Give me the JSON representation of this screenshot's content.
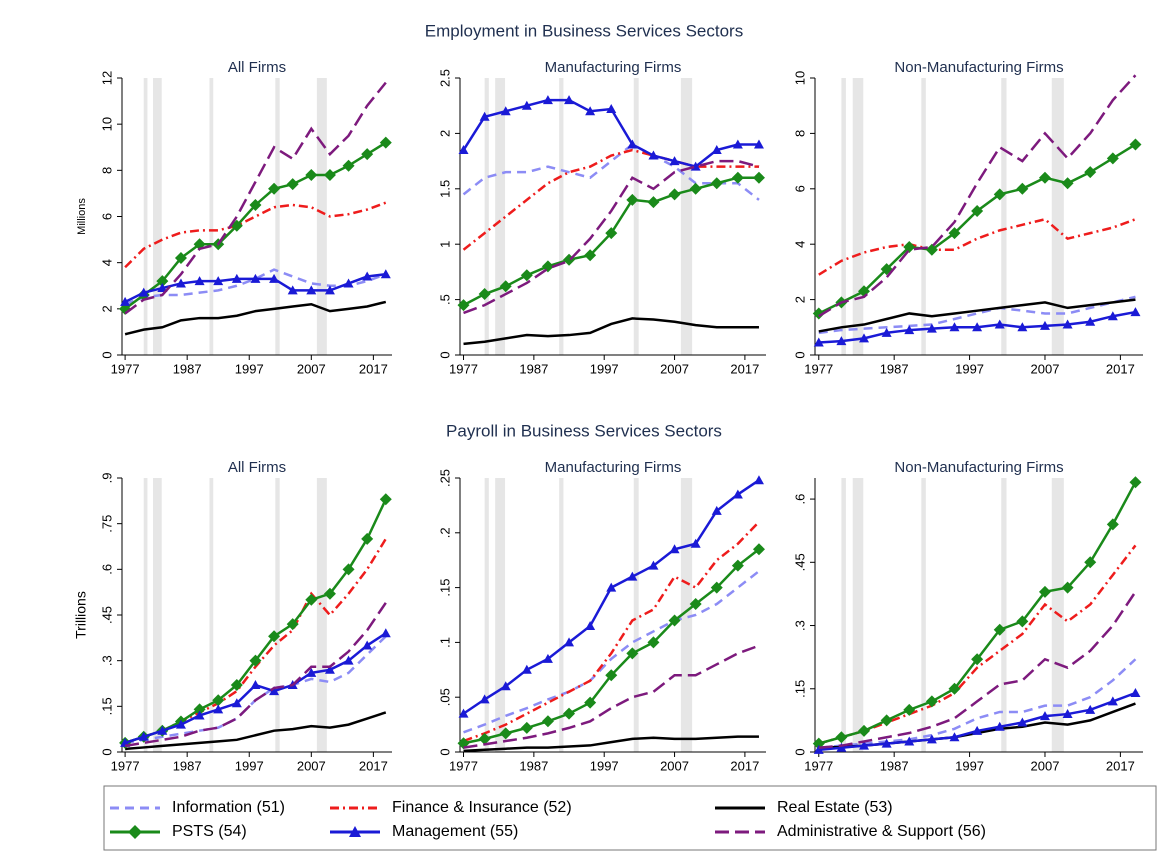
{
  "chart_data": [
    {
      "type": "line",
      "suptitle": "Employment in Business Services Sectors",
      "title": "All Firms",
      "ylabel": "Millions",
      "x": [
        1977,
        1980,
        1983,
        1986,
        1989,
        1992,
        1995,
        1998,
        2001,
        2004,
        2007,
        2010,
        2013,
        2016,
        2019
      ],
      "xlim": [
        1976.5,
        2020
      ],
      "xticks": [
        1977,
        1987,
        1997,
        2007,
        2017
      ],
      "ylim": [
        0,
        12
      ],
      "yticks": [
        0,
        2,
        4,
        6,
        8,
        10,
        12
      ],
      "bands": [
        [
          1980.0,
          1980.6
        ],
        [
          1981.5,
          1982.9
        ],
        [
          1990.6,
          1991.2
        ],
        [
          2001.2,
          2001.9
        ],
        [
          2007.9,
          2009.5
        ]
      ],
      "series": [
        {
          "name": "Information (51)",
          "color": "#8c8cf5",
          "line_style": "dash",
          "values": [
            2.2,
            2.5,
            2.6,
            2.6,
            2.7,
            2.8,
            3.0,
            3.3,
            3.7,
            3.4,
            3.1,
            3.0,
            3.0,
            3.2,
            3.5
          ]
        },
        {
          "name": "Finance & Insurance (52)",
          "color": "#ee1c1c",
          "line_style": "dashdot",
          "values": [
            3.8,
            4.6,
            5.0,
            5.3,
            5.4,
            5.4,
            5.6,
            6.0,
            6.4,
            6.5,
            6.4,
            6.0,
            6.1,
            6.3,
            6.6
          ]
        },
        {
          "name": "Real Estate (53)",
          "color": "#000000",
          "line_style": "solid",
          "values": [
            0.9,
            1.1,
            1.2,
            1.5,
            1.6,
            1.6,
            1.7,
            1.9,
            2.0,
            2.1,
            2.2,
            1.9,
            2.0,
            2.1,
            2.3
          ]
        },
        {
          "name": "PSTS (54)",
          "color": "#1a8a1a",
          "line_style": "solid",
          "marker": "diamond",
          "values": [
            2.0,
            2.6,
            3.2,
            4.2,
            4.8,
            4.8,
            5.6,
            6.5,
            7.2,
            7.4,
            7.8,
            7.8,
            8.2,
            8.7,
            9.2
          ]
        },
        {
          "name": "Management (55)",
          "color": "#1a1ad6",
          "line_style": "solid",
          "marker": "triangle",
          "values": [
            2.3,
            2.7,
            2.9,
            3.1,
            3.2,
            3.2,
            3.3,
            3.3,
            3.3,
            2.8,
            2.8,
            2.8,
            3.1,
            3.4,
            3.5
          ]
        },
        {
          "name": "Administrative & Support (56)",
          "color": "#7d1a7d",
          "line_style": "longdash",
          "values": [
            1.8,
            2.4,
            2.6,
            3.5,
            4.6,
            4.8,
            6.0,
            7.5,
            9.0,
            8.5,
            9.8,
            8.7,
            9.5,
            10.8,
            11.8
          ]
        }
      ]
    },
    {
      "type": "line",
      "title": "Manufacturing Firms",
      "x": [
        1977,
        1980,
        1983,
        1986,
        1989,
        1992,
        1995,
        1998,
        2001,
        2004,
        2007,
        2010,
        2013,
        2016,
        2019
      ],
      "xlim": [
        1976.5,
        2020
      ],
      "xticks": [
        1977,
        1987,
        1997,
        2007,
        2017
      ],
      "ylim": [
        0,
        2.5
      ],
      "yticks": [
        0,
        {
          "value": 0.5,
          "label": ".5"
        },
        1,
        1.5,
        2,
        2.5
      ],
      "bands": [
        [
          1980.0,
          1980.6
        ],
        [
          1981.5,
          1982.9
        ],
        [
          1990.6,
          1991.2
        ],
        [
          2001.2,
          2001.9
        ],
        [
          2007.9,
          2009.5
        ]
      ],
      "series": [
        {
          "values": [
            1.45,
            1.6,
            1.65,
            1.65,
            1.7,
            1.65,
            1.6,
            1.75,
            1.9,
            1.8,
            1.7,
            1.55,
            1.55,
            1.55,
            1.4
          ]
        },
        {
          "values": [
            0.95,
            1.1,
            1.25,
            1.4,
            1.55,
            1.65,
            1.7,
            1.8,
            1.85,
            1.8,
            1.75,
            1.7,
            1.7,
            1.7,
            1.7
          ]
        },
        {
          "values": [
            0.1,
            0.12,
            0.15,
            0.18,
            0.17,
            0.18,
            0.2,
            0.28,
            0.33,
            0.32,
            0.3,
            0.27,
            0.25,
            0.25,
            0.25
          ]
        },
        {
          "values": [
            0.45,
            0.55,
            0.62,
            0.72,
            0.8,
            0.86,
            0.9,
            1.1,
            1.4,
            1.38,
            1.45,
            1.5,
            1.55,
            1.6,
            1.6
          ]
        },
        {
          "values": [
            1.85,
            2.15,
            2.2,
            2.25,
            2.3,
            2.3,
            2.2,
            2.22,
            1.9,
            1.8,
            1.75,
            1.7,
            1.85,
            1.9,
            1.9
          ]
        },
        {
          "values": [
            0.38,
            0.45,
            0.55,
            0.65,
            0.78,
            0.85,
            1.05,
            1.3,
            1.6,
            1.5,
            1.65,
            1.7,
            1.75,
            1.75,
            1.7
          ]
        }
      ]
    },
    {
      "type": "line",
      "title": "Non-Manufacturing Firms",
      "x": [
        1977,
        1980,
        1983,
        1986,
        1989,
        1992,
        1995,
        1998,
        2001,
        2004,
        2007,
        2010,
        2013,
        2016,
        2019
      ],
      "xlim": [
        1976.5,
        2020
      ],
      "xticks": [
        1977,
        1987,
        1997,
        2007,
        2017
      ],
      "ylim": [
        0,
        10
      ],
      "yticks": [
        0,
        2,
        4,
        6,
        8,
        10
      ],
      "bands": [
        [
          1980.0,
          1980.6
        ],
        [
          1981.5,
          1982.9
        ],
        [
          1990.6,
          1991.2
        ],
        [
          2001.2,
          2001.9
        ],
        [
          2007.9,
          2009.5
        ]
      ],
      "series": [
        {
          "values": [
            0.8,
            0.9,
            0.95,
            1.0,
            1.05,
            1.1,
            1.3,
            1.5,
            1.7,
            1.6,
            1.5,
            1.5,
            1.7,
            1.9,
            2.1
          ]
        },
        {
          "values": [
            2.9,
            3.4,
            3.7,
            3.9,
            4.0,
            3.8,
            3.8,
            4.2,
            4.5,
            4.7,
            4.9,
            4.2,
            4.4,
            4.6,
            4.9
          ]
        },
        {
          "values": [
            0.85,
            1.0,
            1.1,
            1.3,
            1.5,
            1.4,
            1.5,
            1.6,
            1.7,
            1.8,
            1.9,
            1.7,
            1.8,
            1.9,
            2.0
          ]
        },
        {
          "values": [
            1.5,
            1.9,
            2.3,
            3.1,
            3.9,
            3.8,
            4.4,
            5.2,
            5.8,
            6.0,
            6.4,
            6.2,
            6.6,
            7.1,
            7.6
          ]
        },
        {
          "values": [
            0.45,
            0.5,
            0.6,
            0.8,
            0.9,
            0.95,
            1.0,
            1.0,
            1.1,
            1.0,
            1.05,
            1.1,
            1.2,
            1.4,
            1.55
          ]
        },
        {
          "values": [
            1.4,
            1.9,
            2.1,
            2.8,
            3.8,
            3.9,
            4.8,
            6.2,
            7.5,
            7.0,
            8.0,
            7.1,
            8.0,
            9.2,
            10.1
          ]
        }
      ]
    },
    {
      "type": "line",
      "suptitle": "Payroll in Business Services Sectors",
      "title": "All Firms",
      "ylabel": "Trillions",
      "x": [
        1977,
        1980,
        1983,
        1986,
        1989,
        1992,
        1995,
        1998,
        2001,
        2004,
        2007,
        2010,
        2013,
        2016,
        2019
      ],
      "xlim": [
        1976.5,
        2020
      ],
      "xticks": [
        1977,
        1987,
        1997,
        2007,
        2017
      ],
      "ylim": [
        0,
        0.9
      ],
      "yticks": [
        0,
        {
          "value": 0.15,
          "label": ".15"
        },
        {
          "value": 0.3,
          "label": ".3"
        },
        {
          "value": 0.45,
          "label": ".45"
        },
        {
          "value": 0.6,
          "label": ".6"
        },
        {
          "value": 0.75,
          "label": ".75"
        },
        {
          "value": 0.9,
          "label": ".9"
        }
      ],
      "bands": [
        [
          1980.0,
          1980.6
        ],
        [
          1981.5,
          1982.9
        ],
        [
          1990.6,
          1991.2
        ],
        [
          2001.2,
          2001.9
        ],
        [
          2007.9,
          2009.5
        ]
      ],
      "series": [
        {
          "values": [
            0.03,
            0.04,
            0.05,
            0.06,
            0.07,
            0.08,
            0.11,
            0.17,
            0.21,
            0.22,
            0.24,
            0.23,
            0.26,
            0.32,
            0.38
          ]
        },
        {
          "values": [
            0.03,
            0.05,
            0.07,
            0.1,
            0.13,
            0.16,
            0.2,
            0.28,
            0.35,
            0.4,
            0.52,
            0.45,
            0.52,
            0.6,
            0.7
          ]
        },
        {
          "values": [
            0.01,
            0.015,
            0.02,
            0.025,
            0.03,
            0.035,
            0.04,
            0.055,
            0.07,
            0.075,
            0.085,
            0.08,
            0.09,
            0.11,
            0.13
          ]
        },
        {
          "values": [
            0.03,
            0.05,
            0.07,
            0.1,
            0.14,
            0.17,
            0.22,
            0.3,
            0.38,
            0.42,
            0.5,
            0.52,
            0.6,
            0.7,
            0.83
          ]
        },
        {
          "values": [
            0.03,
            0.05,
            0.07,
            0.09,
            0.12,
            0.14,
            0.16,
            0.22,
            0.2,
            0.22,
            0.26,
            0.27,
            0.3,
            0.35,
            0.39
          ]
        },
        {
          "values": [
            0.02,
            0.03,
            0.04,
            0.05,
            0.07,
            0.08,
            0.11,
            0.17,
            0.21,
            0.22,
            0.28,
            0.28,
            0.33,
            0.4,
            0.49
          ]
        }
      ]
    },
    {
      "type": "line",
      "title": "Manufacturing Firms",
      "x": [
        1977,
        1980,
        1983,
        1986,
        1989,
        1992,
        1995,
        1998,
        2001,
        2004,
        2007,
        2010,
        2013,
        2016,
        2019
      ],
      "xlim": [
        1976.5,
        2020
      ],
      "xticks": [
        1977,
        1987,
        1997,
        2007,
        2017
      ],
      "ylim": [
        0,
        0.25
      ],
      "yticks": [
        0,
        {
          "value": 0.05,
          "label": ".05"
        },
        {
          "value": 0.1,
          "label": ".1"
        },
        {
          "value": 0.15,
          "label": ".15"
        },
        {
          "value": 0.2,
          "label": ".2"
        },
        {
          "value": 0.25,
          "label": ".25"
        }
      ],
      "bands": [
        [
          1980.0,
          1980.6
        ],
        [
          1981.5,
          1982.9
        ],
        [
          1990.6,
          1991.2
        ],
        [
          2001.2,
          2001.9
        ],
        [
          2007.9,
          2009.5
        ]
      ],
      "series": [
        {
          "values": [
            0.018,
            0.025,
            0.033,
            0.04,
            0.048,
            0.055,
            0.065,
            0.085,
            0.1,
            0.11,
            0.12,
            0.125,
            0.135,
            0.15,
            0.165
          ]
        },
        {
          "values": [
            0.01,
            0.017,
            0.025,
            0.035,
            0.045,
            0.055,
            0.065,
            0.09,
            0.12,
            0.13,
            0.16,
            0.15,
            0.175,
            0.19,
            0.21
          ]
        },
        {
          "values": [
            0.001,
            0.002,
            0.003,
            0.004,
            0.004,
            0.005,
            0.006,
            0.009,
            0.012,
            0.013,
            0.012,
            0.012,
            0.013,
            0.014,
            0.014
          ]
        },
        {
          "values": [
            0.008,
            0.012,
            0.017,
            0.022,
            0.028,
            0.035,
            0.045,
            0.07,
            0.09,
            0.1,
            0.12,
            0.135,
            0.15,
            0.17,
            0.185
          ]
        },
        {
          "values": [
            0.035,
            0.048,
            0.06,
            0.075,
            0.085,
            0.1,
            0.115,
            0.15,
            0.16,
            0.17,
            0.185,
            0.19,
            0.22,
            0.235,
            0.248
          ]
        },
        {
          "values": [
            0.004,
            0.007,
            0.01,
            0.013,
            0.017,
            0.022,
            0.028,
            0.04,
            0.05,
            0.055,
            0.07,
            0.07,
            0.08,
            0.09,
            0.097
          ]
        }
      ]
    },
    {
      "type": "line",
      "title": "Non-Manufacturing Firms",
      "x": [
        1977,
        1980,
        1983,
        1986,
        1989,
        1992,
        1995,
        1998,
        2001,
        2004,
        2007,
        2010,
        2013,
        2016,
        2019
      ],
      "xlim": [
        1976.5,
        2020
      ],
      "xticks": [
        1977,
        1987,
        1997,
        2007,
        2017
      ],
      "ylim": [
        0,
        0.65
      ],
      "yticks": [
        0,
        {
          "value": 0.15,
          "label": ".15"
        },
        {
          "value": 0.3,
          "label": ".3"
        },
        {
          "value": 0.45,
          "label": ".45"
        },
        {
          "value": 0.6,
          "label": ".6"
        }
      ],
      "bands": [
        [
          1980.0,
          1980.6
        ],
        [
          1981.5,
          1982.9
        ],
        [
          1990.6,
          1991.2
        ],
        [
          2001.2,
          2001.9
        ],
        [
          2007.9,
          2009.5
        ]
      ],
      "series": [
        {
          "values": [
            0.01,
            0.015,
            0.02,
            0.025,
            0.03,
            0.04,
            0.055,
            0.08,
            0.095,
            0.095,
            0.11,
            0.11,
            0.13,
            0.17,
            0.22
          ]
        },
        {
          "values": [
            0.02,
            0.035,
            0.05,
            0.07,
            0.09,
            0.11,
            0.14,
            0.2,
            0.24,
            0.28,
            0.35,
            0.31,
            0.35,
            0.42,
            0.49
          ]
        },
        {
          "values": [
            0.01,
            0.012,
            0.015,
            0.02,
            0.025,
            0.03,
            0.035,
            0.045,
            0.055,
            0.06,
            0.07,
            0.065,
            0.075,
            0.095,
            0.115
          ]
        },
        {
          "values": [
            0.02,
            0.035,
            0.05,
            0.075,
            0.1,
            0.12,
            0.15,
            0.22,
            0.29,
            0.31,
            0.38,
            0.39,
            0.45,
            0.54,
            0.64
          ]
        },
        {
          "values": [
            0.005,
            0.01,
            0.015,
            0.02,
            0.025,
            0.03,
            0.035,
            0.05,
            0.06,
            0.07,
            0.085,
            0.09,
            0.1,
            0.12,
            0.14
          ]
        },
        {
          "values": [
            0.01,
            0.015,
            0.025,
            0.035,
            0.045,
            0.06,
            0.08,
            0.12,
            0.16,
            0.17,
            0.22,
            0.2,
            0.24,
            0.3,
            0.38
          ]
        }
      ]
    }
  ]
}
